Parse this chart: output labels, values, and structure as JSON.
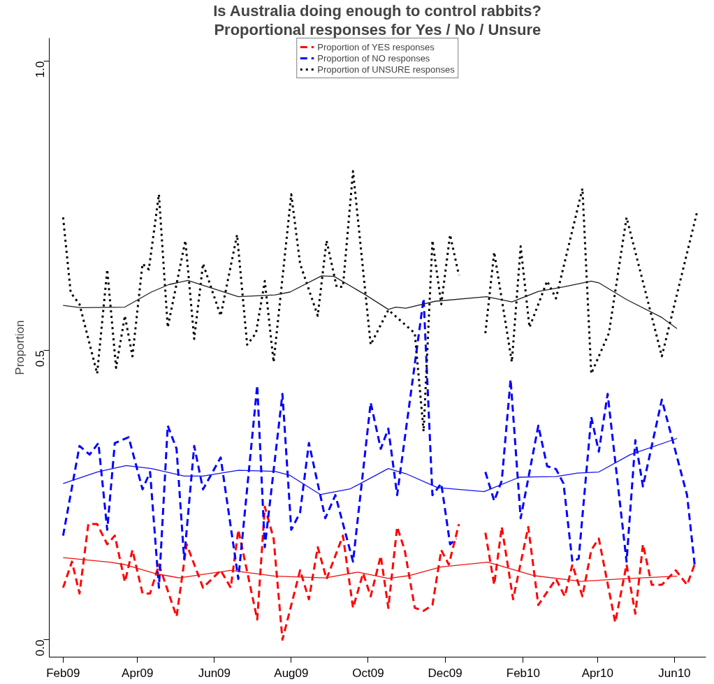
{
  "chart_data": {
    "type": "line",
    "title": "Is Australia doing enough to control rabbits?",
    "subtitle": "Proportional responses for Yes / No / Unsure",
    "ylabel": "Proportion",
    "xlim": [
      "2009-01-21",
      "2010-06-26"
    ],
    "xticks": [
      {
        "value": "2009-02-01",
        "label": "Feb09"
      },
      {
        "value": "2009-04-01",
        "label": "Apr09"
      },
      {
        "value": "2009-06-01",
        "label": "Jun09"
      },
      {
        "value": "2009-08-01",
        "label": "Aug09"
      },
      {
        "value": "2009-10-01",
        "label": "Oct09"
      },
      {
        "value": "2009-12-01",
        "label": "Dec09"
      },
      {
        "value": "2010-02-01",
        "label": "Feb10"
      },
      {
        "value": "2010-04-01",
        "label": "Apr10"
      },
      {
        "value": "2010-06-01",
        "label": "Jun10"
      }
    ],
    "ylim": [
      -0.03,
      1.04
    ],
    "yticks": [
      {
        "value": 0,
        "label": "0.0"
      },
      {
        "value": 0.5,
        "label": "0.5"
      },
      {
        "value": 1,
        "label": "1.0"
      }
    ],
    "grid": false,
    "legend": "top",
    "series": [
      {
        "name": "Proportion of YES responses",
        "color": "#ff0000",
        "line_style": "dashed",
        "x": [
          "2009-02-01",
          "2009-02-08",
          "2009-02-14",
          "2009-02-21",
          "2009-02-28",
          "2009-03-08",
          "2009-03-14",
          "2009-03-22",
          "2009-03-28",
          "2009-04-05",
          "2009-04-11",
          "2009-04-18",
          "2009-05-02",
          "2009-05-10",
          "2009-05-23",
          "2009-06-06",
          "2009-06-14",
          "2009-06-20",
          "2009-07-05",
          "2009-07-11",
          "2009-07-18",
          "2009-07-25",
          "2009-08-08",
          "2009-08-15",
          "2009-08-22",
          "2009-08-29",
          "2009-09-11",
          "2009-09-19",
          "2009-09-27",
          "2009-10-03",
          "2009-10-11",
          "2009-10-17",
          "2009-10-24",
          "2009-10-30",
          "2009-11-07",
          "2009-11-14",
          "2009-11-21",
          "2009-11-28",
          "2009-12-04",
          "2009-12-12",
          "2009-12-22",
          "2010-01-02",
          "2010-01-09",
          "2010-01-15",
          "2010-01-24",
          "2010-02-05",
          "2010-02-13",
          "2010-02-27",
          "2010-03-06",
          "2010-03-12",
          "2010-03-20",
          "2010-03-27",
          "2010-04-02",
          "2010-04-15",
          "2010-04-24",
          "2010-05-01",
          "2010-05-07",
          "2010-05-14",
          "2010-05-22",
          "2010-06-02",
          "2010-06-11",
          "2010-06-17"
        ],
        "values": [
          0.09,
          0.135,
          0.08,
          0.2,
          0.2,
          0.165,
          0.18,
          0.1,
          0.155,
          0.08,
          0.08,
          0.13,
          0.04,
          0.165,
          0.09,
          0.12,
          0.09,
          0.19,
          0.035,
          0.23,
          0.175,
          0.0,
          0.12,
          0.07,
          0.16,
          0.105,
          0.18,
          0.055,
          0.115,
          0.075,
          0.145,
          0.055,
          0.195,
          0.155,
          0.055,
          0.05,
          0.06,
          0.155,
          0.13,
          0.2,
          null,
          0.185,
          0.095,
          0.195,
          0.07,
          0.195,
          0.06,
          0.105,
          0.075,
          0.13,
          0.075,
          0.155,
          0.175,
          0.03,
          0.13,
          0.045,
          0.165,
          0.095,
          0.095,
          0.12,
          0.095,
          0.13
        ]
      },
      {
        "name": "Proportion of NO responses",
        "color": "#0000ff",
        "line_style": "dashed",
        "x": [
          "2009-02-01",
          "2009-02-14",
          "2009-02-22",
          "2009-03-01",
          "2009-03-08",
          "2009-03-14",
          "2009-03-25",
          "2009-04-05",
          "2009-04-11",
          "2009-04-18",
          "2009-04-25",
          "2009-05-02",
          "2009-05-08",
          "2009-05-16",
          "2009-05-23",
          "2009-06-06",
          "2009-06-20",
          "2009-07-05",
          "2009-07-11",
          "2009-07-25",
          "2009-08-01",
          "2009-08-08",
          "2009-08-15",
          "2009-08-28",
          "2009-09-05",
          "2009-09-19",
          "2009-10-03",
          "2009-10-11",
          "2009-10-17",
          "2009-10-24",
          "2009-11-14",
          "2009-11-21",
          "2009-11-28",
          "2009-12-05",
          "2009-12-10",
          "2009-12-22",
          "2010-01-02",
          "2010-01-09",
          "2010-01-15",
          "2010-01-22",
          "2010-01-30",
          "2010-02-13",
          "2010-02-20",
          "2010-02-27",
          "2010-03-05",
          "2010-03-12",
          "2010-03-17",
          "2010-03-27",
          "2010-04-02",
          "2010-04-09",
          "2010-04-24",
          "2010-05-01",
          "2010-05-07",
          "2010-05-22",
          "2010-06-11",
          "2010-06-17"
        ],
        "values": [
          0.18,
          0.335,
          0.32,
          0.34,
          0.19,
          0.34,
          0.35,
          0.26,
          0.29,
          0.09,
          0.37,
          0.33,
          0.14,
          0.335,
          0.26,
          0.315,
          0.105,
          0.44,
          0.16,
          0.425,
          0.19,
          0.22,
          0.34,
          0.21,
          0.25,
          0.135,
          0.41,
          0.33,
          0.365,
          0.25,
          0.59,
          0.25,
          0.27,
          0.165,
          0.175,
          null,
          0.29,
          0.24,
          0.275,
          0.45,
          0.21,
          0.37,
          0.3,
          0.295,
          0.27,
          0.135,
          0.14,
          0.385,
          0.325,
          0.425,
          0.135,
          0.345,
          0.265,
          0.415,
          0.25,
          0.13
        ]
      },
      {
        "name": "Proportion of UNSURE responses",
        "color": "#000000",
        "line_style": "dotted",
        "x": [
          "2009-02-01",
          "2009-02-07",
          "2009-02-14",
          "2009-02-28",
          "2009-03-08",
          "2009-03-15",
          "2009-03-22",
          "2009-03-28",
          "2009-04-05",
          "2009-04-10",
          "2009-04-18",
          "2009-04-25",
          "2009-05-09",
          "2009-05-16",
          "2009-05-23",
          "2009-06-06",
          "2009-06-19",
          "2009-06-27",
          "2009-07-04",
          "2009-07-11",
          "2009-07-18",
          "2009-08-01",
          "2009-08-08",
          "2009-08-22",
          "2009-08-29",
          "2009-09-06",
          "2009-09-11",
          "2009-09-19",
          "2009-10-03",
          "2009-10-17",
          "2009-11-07",
          "2009-11-14",
          "2009-11-21",
          "2009-11-28",
          "2009-12-05",
          "2009-12-12",
          "2009-12-22",
          "2010-01-02",
          "2010-01-09",
          "2010-01-23",
          "2010-01-30",
          "2010-02-06",
          "2010-02-20",
          "2010-02-27",
          "2010-03-20",
          "2010-03-27",
          "2010-04-10",
          "2010-04-24",
          "2010-05-22",
          "2010-06-19"
        ],
        "values": [
          0.73,
          0.6,
          0.58,
          0.46,
          0.64,
          0.47,
          0.56,
          0.49,
          0.65,
          0.64,
          0.77,
          0.54,
          0.69,
          0.52,
          0.65,
          0.56,
          0.7,
          0.51,
          0.53,
          0.62,
          0.48,
          0.77,
          0.65,
          0.56,
          0.69,
          0.61,
          0.61,
          0.81,
          0.51,
          0.57,
          0.53,
          0.36,
          0.69,
          0.58,
          0.7,
          0.63,
          null,
          0.53,
          0.67,
          0.48,
          0.68,
          0.54,
          0.62,
          0.59,
          0.78,
          0.46,
          0.53,
          0.73,
          0.49,
          0.74
        ]
      },
      {
        "color": "#f01010",
        "line_style": "solid",
        "x": [
          "2009-02-01",
          "2009-03-10",
          "2009-03-22",
          "2009-04-16",
          "2009-05-04",
          "2009-06-14",
          "2009-07-19",
          "2009-08-28",
          "2009-09-23",
          "2009-10-17",
          "2009-11-03",
          "2009-11-28",
          "2010-01-04",
          "2010-02-09",
          "2010-03-19",
          "2010-04-19",
          "2010-06-03"
        ],
        "values": [
          0.142,
          0.134,
          0.13,
          0.114,
          0.107,
          0.12,
          0.11,
          0.107,
          0.117,
          0.106,
          0.111,
          0.126,
          0.134,
          0.111,
          0.101,
          0.105,
          0.11
        ]
      },
      {
        "color": "#1010f0",
        "line_style": "solid",
        "x": [
          "2009-02-01",
          "2009-02-28",
          "2009-03-23",
          "2009-04-12",
          "2009-05-08",
          "2009-05-23",
          "2009-06-20",
          "2009-07-19",
          "2009-07-31",
          "2009-08-24",
          "2009-09-17",
          "2009-10-17",
          "2009-10-31",
          "2009-11-25",
          "2010-01-01",
          "2010-01-29",
          "2010-02-27",
          "2010-03-16",
          "2010-04-02",
          "2010-04-27",
          "2010-06-03"
        ],
        "values": [
          0.27,
          0.29,
          0.301,
          0.296,
          0.283,
          0.283,
          0.293,
          0.291,
          0.284,
          0.251,
          0.261,
          0.296,
          0.287,
          0.263,
          0.256,
          0.281,
          0.282,
          0.288,
          0.29,
          0.32,
          0.348
        ]
      },
      {
        "color": "#202020",
        "line_style": "solid",
        "x": [
          "2009-02-01",
          "2009-02-15",
          "2009-03-22",
          "2009-04-12",
          "2009-04-26",
          "2009-05-11",
          "2009-06-20",
          "2009-07-19",
          "2009-07-31",
          "2009-08-25",
          "2009-09-04",
          "2009-09-29",
          "2009-10-17",
          "2009-10-23",
          "2009-10-31",
          "2009-11-23",
          "2010-01-03",
          "2010-01-23",
          "2010-02-13",
          "2010-03-05",
          "2010-03-27",
          "2010-04-02",
          "2010-04-24",
          "2010-05-22",
          "2010-06-03"
        ],
        "values": [
          0.578,
          0.574,
          0.575,
          0.601,
          0.614,
          0.621,
          0.593,
          0.596,
          0.601,
          0.629,
          0.628,
          0.596,
          0.571,
          0.575,
          0.573,
          0.585,
          0.593,
          0.584,
          0.602,
          0.61,
          0.62,
          0.617,
          0.588,
          0.557,
          0.538
        ]
      }
    ]
  }
}
